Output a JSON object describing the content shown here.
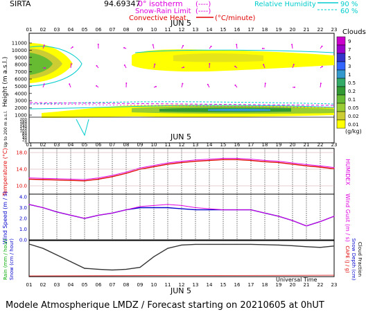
{
  "header": {
    "site": "SIRTA",
    "coord": "94.69347",
    "legend_isotherm": "0° isotherm",
    "legend_isotherm_dash": "(----)",
    "legend_snowrain": "Snow-Rain Limit",
    "legend_snowrain_dash": "(----)",
    "legend_convective": "Convective Heat.",
    "legend_convective_unit": "(°C/minute)",
    "legend_rh": "Relative Humidity",
    "rh_90": "90 %",
    "rh_60": "60 %"
  },
  "hours": [
    "01",
    "02",
    "03",
    "04",
    "05",
    "06",
    "07",
    "08",
    "09",
    "10",
    "11",
    "12",
    "13",
    "14",
    "15",
    "16",
    "17",
    "18",
    "19",
    "20",
    "21",
    "22",
    "23"
  ],
  "date_label": "JUN  5",
  "panel1": {
    "ylabel": "Height   (m a.s.l.)",
    "ylabel_low": "Up to 200 m a.s.l.",
    "yticks_upper": [
      "11000",
      "10000",
      "9000",
      "8000",
      "7000",
      "6000",
      "5000",
      "4000",
      "3000",
      "2000",
      "1000"
    ],
    "yticks_lower": [
      "200",
      "180",
      "160",
      "140",
      "120",
      "100",
      "80",
      "60",
      "40",
      "20",
      "0"
    ],
    "clouds_title": "Clouds",
    "clouds_ticks": [
      "9",
      "7",
      "5",
      "3",
      "1",
      "0.5",
      "0.2",
      "0.1",
      "0.05",
      "0.02",
      "0.01"
    ],
    "clouds_unit": "(g/kg)",
    "colors": [
      "#cc00cc",
      "#9900cc",
      "#3333cc",
      "#3366ff",
      "#3399cc",
      "#33aa66",
      "#339933",
      "#66bb33",
      "#99cc33",
      "#cccc33",
      "#ffff00"
    ]
  },
  "panel2": {
    "ylabel": "Temperature (°C)",
    "rlabel": "HUMIDEX",
    "yticks": [
      "18.0",
      "14.0",
      "10.0"
    ]
  },
  "panel3": {
    "ylabel": "Wind Speed (m / s)",
    "rlabel": "Wind Gust (m / s)",
    "yticks": [
      "4.0",
      "3.0",
      "2.0",
      "1.0",
      "0.0"
    ]
  },
  "panel4": {
    "ylabel_rain": "Rain (mm / hour)",
    "ylabel_snow": "Snow (cm / hour)",
    "rlabel_cape": "CAPE (J / g)",
    "rlabel_snowdepth": "Snow Depth (cm)",
    "rlabel_cloud": "Cloud Fraction",
    "xtitle": "Universal Time"
  },
  "footer": "Modele Atmospherique LMDZ / Forecast starting on 20210605 at 0hUT",
  "chart_data": [
    {
      "type": "line",
      "title": "Temperature / Humidex",
      "x": [
        "01",
        "02",
        "03",
        "04",
        "05",
        "06",
        "07",
        "08",
        "09",
        "10",
        "11",
        "12",
        "13",
        "14",
        "15",
        "16",
        "17",
        "18",
        "19",
        "20",
        "21",
        "22",
        "23"
      ],
      "series": [
        {
          "name": "Temperature",
          "values": [
            11.6,
            11.5,
            11.4,
            11.3,
            11.2,
            11.6,
            12.2,
            13.0,
            14.0,
            14.6,
            15.2,
            15.6,
            15.9,
            16.1,
            16.3,
            16.3,
            16.1,
            15.8,
            15.6,
            15.2,
            14.8,
            14.5,
            14.1
          ]
        },
        {
          "name": "HUMIDEX",
          "values": [
            11.9,
            11.8,
            11.7,
            11.6,
            11.5,
            11.9,
            12.5,
            13.3,
            14.3,
            14.9,
            15.5,
            15.9,
            16.2,
            16.4,
            16.6,
            16.6,
            16.4,
            16.1,
            15.9,
            15.5,
            15.1,
            14.8,
            14.4
          ]
        }
      ],
      "ylim": [
        8,
        19
      ]
    },
    {
      "type": "line",
      "title": "Wind Speed / Gust",
      "x": [
        "01",
        "02",
        "03",
        "04",
        "05",
        "06",
        "07",
        "08",
        "09",
        "10",
        "11",
        "12",
        "13",
        "14",
        "15",
        "16",
        "17",
        "18",
        "19",
        "20",
        "21",
        "22",
        "23"
      ],
      "series": [
        {
          "name": "Wind Speed",
          "values": [
            3.3,
            3.0,
            2.6,
            2.3,
            2.0,
            2.3,
            2.5,
            2.8,
            3.0,
            3.0,
            3.0,
            2.9,
            2.8,
            2.8,
            2.8,
            2.8,
            2.8,
            2.5,
            2.2,
            1.8,
            1.3,
            1.7,
            2.2
          ]
        },
        {
          "name": "Wind Gust",
          "values": [
            3.3,
            3.0,
            2.6,
            2.3,
            2.0,
            2.3,
            2.5,
            2.8,
            3.1,
            3.2,
            3.3,
            3.2,
            3.0,
            2.9,
            2.8,
            2.8,
            2.8,
            2.5,
            2.2,
            1.8,
            1.3,
            1.7,
            2.2
          ]
        }
      ],
      "ylim": [
        0,
        4
      ]
    },
    {
      "type": "line",
      "title": "Cloud Fraction",
      "x": [
        "01",
        "02",
        "03",
        "04",
        "05",
        "06",
        "07",
        "08",
        "09",
        "10",
        "11",
        "12",
        "13",
        "14",
        "15",
        "16",
        "17",
        "18",
        "19",
        "20",
        "21",
        "22",
        "23"
      ],
      "series": [
        {
          "name": "Cloud Fraction",
          "values": [
            0.98,
            0.85,
            0.65,
            0.45,
            0.25,
            0.22,
            0.2,
            0.22,
            0.28,
            0.6,
            0.85,
            0.95,
            0.97,
            0.97,
            0.97,
            0.97,
            0.97,
            0.96,
            0.95,
            0.93,
            0.9,
            0.88,
            0.92
          ]
        }
      ],
      "ylim": [
        0,
        1
      ]
    }
  ]
}
